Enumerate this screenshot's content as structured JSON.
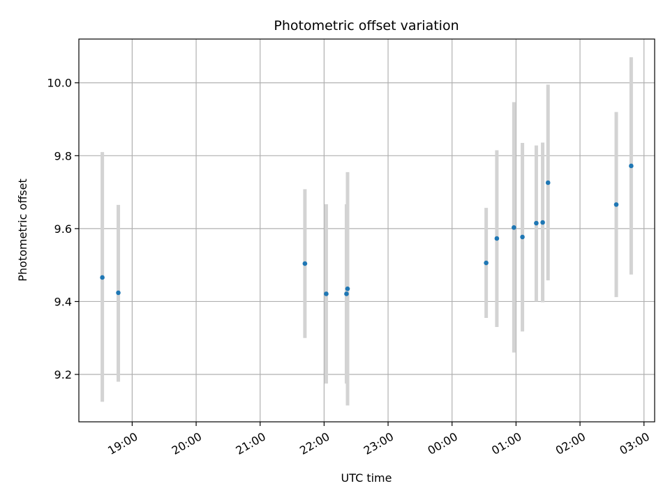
{
  "chart_data": {
    "type": "scatter",
    "title": "Photometric offset variation",
    "xlabel": "UTC time",
    "ylabel": "Photometric offset",
    "x_tick_labels": [
      "19:00",
      "20:00",
      "21:00",
      "22:00",
      "23:00",
      "00:00",
      "01:00",
      "02:00",
      "03:00"
    ],
    "y_tick_labels": [
      "9.2",
      "9.4",
      "9.6",
      "9.8",
      "10.0"
    ],
    "xlim": [
      "18:10",
      "03:10"
    ],
    "ylim": [
      9.07,
      10.12
    ],
    "grid": true,
    "colors": {
      "points": "#1f77b4",
      "errorbars": "#d3d3d3",
      "grid": "#b0b0b0"
    },
    "points": [
      {
        "x": "18:32",
        "y": 9.466,
        "yerr_low": 9.125,
        "yerr_high": 9.81
      },
      {
        "x": "18:47",
        "y": 9.424,
        "yerr_low": 9.18,
        "yerr_high": 9.665
      },
      {
        "x": "21:42",
        "y": 9.504,
        "yerr_low": 9.3,
        "yerr_high": 9.708
      },
      {
        "x": "22:02",
        "y": 9.421,
        "yerr_low": 9.175,
        "yerr_high": 9.667
      },
      {
        "x": "22:21",
        "y": 9.421,
        "yerr_low": 9.175,
        "yerr_high": 9.667
      },
      {
        "x": "22:22",
        "y": 9.435,
        "yerr_low": 9.115,
        "yerr_high": 9.755
      },
      {
        "x": "00:32",
        "y": 9.506,
        "yerr_low": 9.355,
        "yerr_high": 9.657
      },
      {
        "x": "00:42",
        "y": 9.573,
        "yerr_low": 9.33,
        "yerr_high": 9.815
      },
      {
        "x": "00:58",
        "y": 9.603,
        "yerr_low": 9.26,
        "yerr_high": 9.947
      },
      {
        "x": "01:06",
        "y": 9.577,
        "yerr_low": 9.318,
        "yerr_high": 9.835
      },
      {
        "x": "01:19",
        "y": 9.615,
        "yerr_low": 9.4,
        "yerr_high": 9.828
      },
      {
        "x": "01:25",
        "y": 9.617,
        "yerr_low": 9.398,
        "yerr_high": 9.836
      },
      {
        "x": "01:30",
        "y": 9.726,
        "yerr_low": 9.458,
        "yerr_high": 9.995
      },
      {
        "x": "02:34",
        "y": 9.666,
        "yerr_low": 9.412,
        "yerr_high": 9.92
      },
      {
        "x": "02:48",
        "y": 9.772,
        "yerr_low": 9.474,
        "yerr_high": 10.07
      }
    ]
  }
}
